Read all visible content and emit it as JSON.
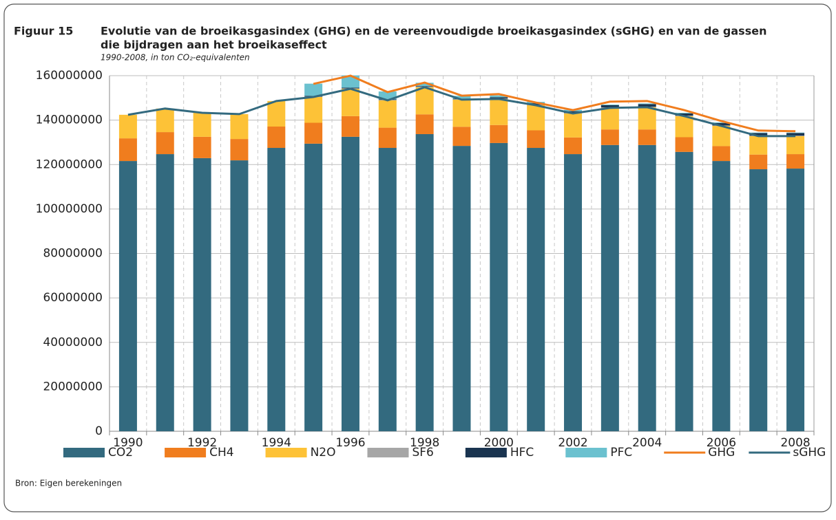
{
  "chart_data": {
    "type": "bar",
    "figure_label": "Figuur 15",
    "title": [
      "Evolutie van de broeikasgasindex (GHG) en de vereenvoudigde broeikasgasindex (sGHG) en van de gassen",
      "die bijdragen aan het broeikaseffect"
    ],
    "subtitle": "1990-2008, in ton CO₂-equivalenten",
    "source": "Bron: Eigen berekeningen",
    "categories": [
      "1990",
      null,
      "1992",
      null,
      "1994",
      null,
      "1996",
      null,
      "1998",
      null,
      "2000",
      null,
      "2002",
      null,
      "2004",
      null,
      "2006",
      null,
      "2008"
    ],
    "ylim": [
      0,
      160000000
    ],
    "yticks": [
      0,
      20000000,
      40000000,
      60000000,
      80000000,
      100000000,
      120000000,
      140000000,
      160000000
    ],
    "grid": true,
    "legend": "bottom",
    "series": [
      {
        "name": "CO2",
        "color": "#336a7f",
        "values": [
          121600000,
          124700000,
          122900000,
          121900000,
          127500000,
          129400000,
          132500000,
          127500000,
          133700000,
          128400000,
          129700000,
          127500000,
          124700000,
          128800000,
          128800000,
          125700000,
          121600000,
          117900000,
          118200000
        ]
      },
      {
        "name": "CH4",
        "color": "#f07d1e",
        "values": [
          10200000,
          9900000,
          9600000,
          9600000,
          9600000,
          9400000,
          9300000,
          9100000,
          8900000,
          8600000,
          8100000,
          7900000,
          7500000,
          7000000,
          7000000,
          6600000,
          6700000,
          6600000,
          6500000
        ]
      },
      {
        "name": "N2O",
        "color": "#fdc237",
        "values": [
          10600000,
          10600000,
          10800000,
          11200000,
          11500000,
          11600000,
          12300000,
          12300000,
          12200000,
          12200000,
          11700000,
          11300000,
          10800000,
          9700000,
          10000000,
          9500000,
          9100000,
          8300000,
          8100000
        ]
      },
      {
        "name": "SF6",
        "color": "#a6a6a6",
        "values": [
          null,
          null,
          null,
          null,
          null,
          200000,
          200000,
          200000,
          200000,
          200000,
          200000,
          200000,
          200000,
          200000,
          200000,
          200000,
          200000,
          200000,
          200000
        ]
      },
      {
        "name": "HFC",
        "color": "#1a3450",
        "values": [
          null,
          null,
          null,
          null,
          null,
          300000,
          300000,
          300000,
          300000,
          300000,
          600000,
          700000,
          800000,
          1000000,
          1200000,
          1000000,
          1100000,
          1200000,
          1200000
        ]
      },
      {
        "name": "PFC",
        "color": "#6bc1cf",
        "values": [
          null,
          null,
          null,
          null,
          null,
          5500000,
          5500000,
          3500000,
          1500000,
          1200000,
          800000,
          600000,
          600000,
          300000,
          300000,
          300000,
          300000,
          200000,
          200000
        ]
      }
    ],
    "lines": [
      {
        "name": "GHG",
        "color": "#f07d1e",
        "values": [
          null,
          null,
          null,
          null,
          null,
          156300000,
          160000000,
          152600000,
          156900000,
          151000000,
          151700000,
          147900000,
          144500000,
          148300000,
          148600000,
          144500000,
          139600000,
          135300000,
          135000000
        ]
      },
      {
        "name": "sGHG",
        "color": "#336a7f",
        "values": [
          142400000,
          145200000,
          143300000,
          142700000,
          148600000,
          150400000,
          154100000,
          148900000,
          154800000,
          149200000,
          149500000,
          146700000,
          143000000,
          145500000,
          145800000,
          141800000,
          137400000,
          132800000,
          132800000
        ]
      }
    ]
  }
}
